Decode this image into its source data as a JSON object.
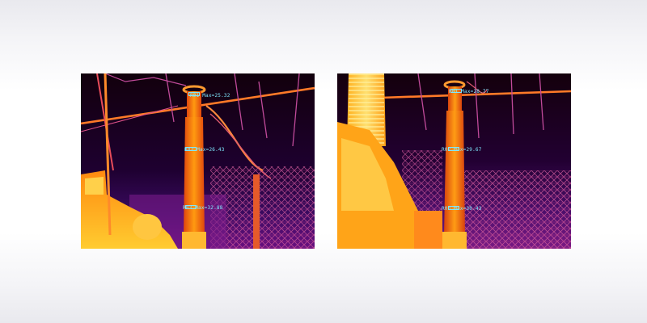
{
  "thermal_images": [
    {
      "name": "left",
      "readouts": [
        {
          "text": "R01 Max=25.32"
        },
        {
          "text": "R02 Max=26.43"
        },
        {
          "text": "R03 Max=32.88"
        }
      ]
    },
    {
      "name": "right",
      "readouts": [
        {
          "text": "R01 Max=28.77"
        },
        {
          "text": "R02 Max=29.67"
        },
        {
          "text": "R03 Max=30.43"
        }
      ]
    }
  ],
  "palette": {
    "cold": "#140010",
    "cool": "#4a0a6e",
    "mid": "#b0147c",
    "warm": "#f25c1c",
    "hot": "#ffb300",
    "hottest": "#fff2a0",
    "overlay_text": "#7ee8ff"
  }
}
